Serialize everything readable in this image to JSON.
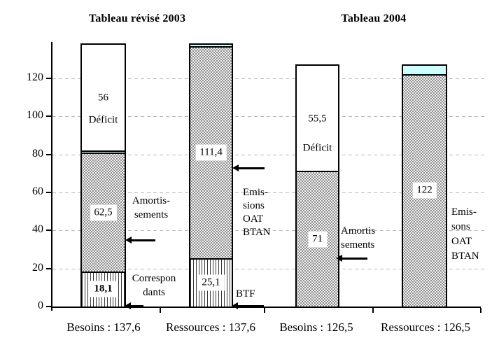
{
  "titles": [
    {
      "id": "left",
      "text": "Tableau révisé 2003"
    },
    {
      "id": "right",
      "text": "Tableau 2004"
    }
  ],
  "chart_data": {
    "type": "bar",
    "stacked": true,
    "groups": [
      "Tableau révisé 2003",
      "Tableau 2004"
    ],
    "y_ticks": [
      0,
      20,
      40,
      60,
      80,
      100,
      120
    ],
    "ylim": [
      0,
      137.6
    ],
    "grid": "horizontal-dashed",
    "legend": "none",
    "categories": [
      "Besoins : 137,6",
      "Ressources : 137,6",
      "Besoins : 126,5",
      "Ressources : 126,5"
    ],
    "bars": [
      {
        "category": "Besoins : 137,6",
        "group": "Tableau révisé 2003",
        "total": 137.6,
        "segments": [
          {
            "name": "Correspondants",
            "value": 18.1,
            "label": "18,1",
            "pattern": "stripes",
            "bold": true
          },
          {
            "name": "Amortissements",
            "value": 62.5,
            "label": "62,5",
            "pattern": "dots"
          },
          {
            "name": "",
            "value": 1.0,
            "label": "",
            "pattern": "cyan"
          },
          {
            "name": "Déficit",
            "value": 56,
            "label": "56",
            "pattern": "white",
            "show_name": true
          }
        ]
      },
      {
        "category": "Ressources : 137,6",
        "group": "Tableau révisé 2003",
        "total": 137.6,
        "segments": [
          {
            "name": "BTF",
            "value": 25.1,
            "label": "25,1",
            "pattern": "stripes"
          },
          {
            "name": "Emissions OAT BTAN",
            "value": 111.4,
            "label": "111,4",
            "pattern": "dots"
          },
          {
            "name": "",
            "value": 1.1,
            "label": "",
            "pattern": "cyan"
          }
        ]
      },
      {
        "category": "Besoins : 126,5",
        "group": "Tableau 2004",
        "total": 126.5,
        "segments": [
          {
            "name": "Amortissements",
            "value": 71,
            "label": "71",
            "pattern": "dots"
          },
          {
            "name": "Déficit",
            "value": 55.5,
            "label": "55,5",
            "pattern": "white",
            "show_name": true
          }
        ]
      },
      {
        "category": "Ressources : 126,5",
        "group": "Tableau 2004",
        "total": 126.5,
        "segments": [
          {
            "name": "Emissions OAT BTAN",
            "value": 122,
            "label": "122",
            "pattern": "dots"
          },
          {
            "name": "",
            "value": 4.5,
            "label": "",
            "pattern": "cyan"
          }
        ]
      }
    ]
  },
  "annotations": [
    {
      "id": "amortissements-2003",
      "lines": [
        "Amortis-",
        "sements"
      ]
    },
    {
      "id": "correspondants-2003",
      "lines": [
        "Correspon",
        "dants"
      ]
    },
    {
      "id": "emissions-2003",
      "lines": [
        "Emis-",
        "sions",
        "OAT",
        "BTAN"
      ]
    },
    {
      "id": "btf-2003",
      "lines": [
        "BTF"
      ]
    },
    {
      "id": "amortissements-2004",
      "lines": [
        "Amortis",
        "sements"
      ]
    },
    {
      "id": "emissions-2004",
      "lines": [
        "Emis-",
        "sons",
        "OAT",
        "BTAN"
      ]
    }
  ],
  "colors": {
    "cyan_segment": "#ccffff",
    "dots_base": "#8f8f8f",
    "grid": "#b8b8b8",
    "axis": "#000000",
    "text": "#000000",
    "background": "#ffffff"
  }
}
